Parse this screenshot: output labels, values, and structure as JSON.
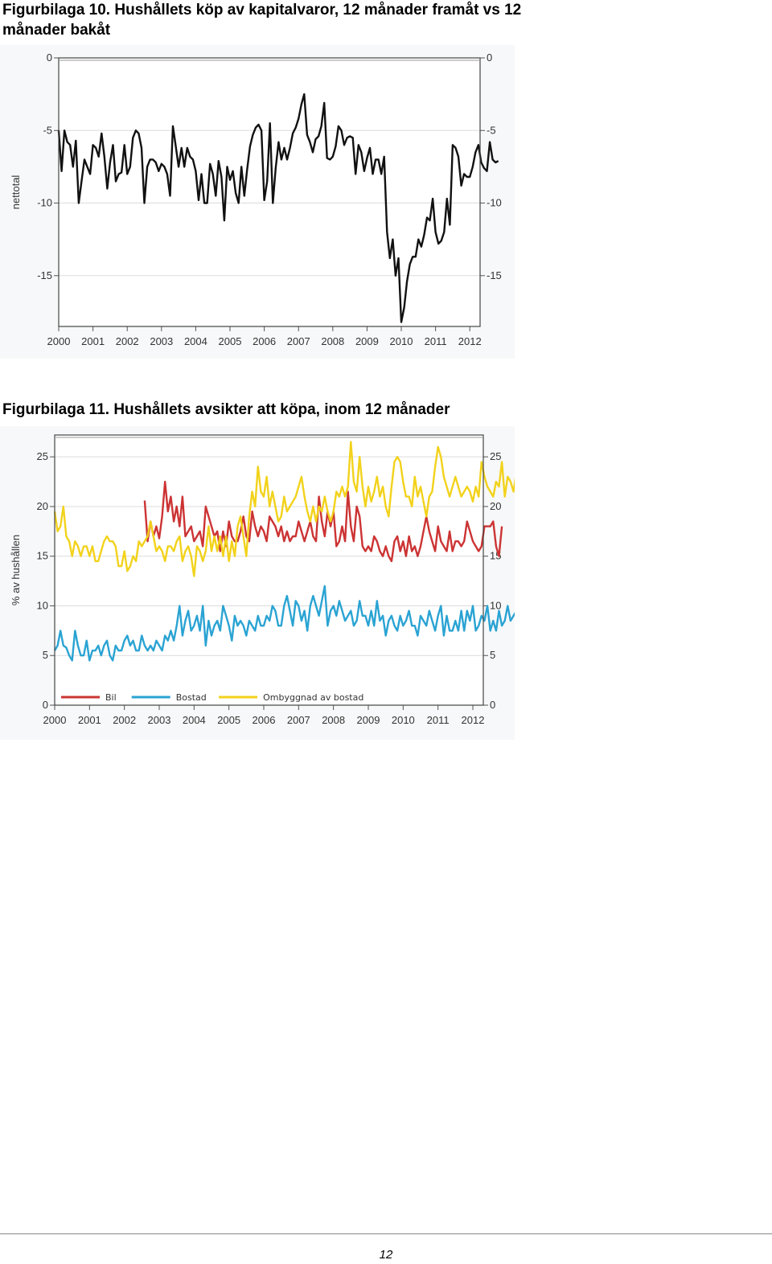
{
  "figures": [
    {
      "title": "Figurbilaga 10. Hushållets köp av kapitalvaror, 12 månader framåt vs 12 månader bakåt"
    },
    {
      "title": "Figurbilaga 11. Hushållets avsikter att köpa, inom 12 månader"
    }
  ],
  "page_number": "12",
  "chart_data": [
    {
      "type": "line",
      "title": "",
      "xlabel": "",
      "ylabel": "nettotal",
      "x_ticks": [
        "2000",
        "2001",
        "2002",
        "2003",
        "2004",
        "2005",
        "2006",
        "2007",
        "2008",
        "2009",
        "2010",
        "2011",
        "2012"
      ],
      "y_ticks": [
        0,
        -5,
        -10,
        -15
      ],
      "xlim": [
        2000,
        2012.3
      ],
      "ylim": [
        -18.5,
        0
      ],
      "grid": true,
      "x_start": 2000,
      "x_step_months": 1,
      "series": [
        {
          "color": "#111111",
          "values": [
            -5,
            -7.8,
            -5,
            -5.8,
            -6,
            -7.5,
            -5.7,
            -10,
            -8.5,
            -7,
            -7.5,
            -8,
            -6,
            -6.2,
            -6.8,
            -5.2,
            -6.8,
            -9,
            -7.2,
            -6,
            -8.5,
            -8,
            -7.9,
            -6,
            -8,
            -7.5,
            -5.5,
            -5,
            -5.2,
            -6.2,
            -10,
            -7.5,
            -7,
            -7,
            -7.2,
            -7.8,
            -7.3,
            -7.5,
            -8,
            -9.5,
            -4.7,
            -6.1,
            -7.5,
            -6.2,
            -7.5,
            -6.2,
            -6.8,
            -7,
            -7.8,
            -9.8,
            -8,
            -10,
            -10,
            -7.3,
            -8,
            -9.5,
            -7.1,
            -8.2,
            -11.2,
            -7.5,
            -8.4,
            -7.8,
            -9.3,
            -10,
            -7.5,
            -9.5,
            -7.7,
            -6.1,
            -5.3,
            -4.8,
            -4.6,
            -5,
            -9.8,
            -8.5,
            -4.5,
            -10,
            -7.6,
            -5.8,
            -7,
            -6.2,
            -7,
            -6.2,
            -5.2,
            -4.8,
            -4.2,
            -3.2,
            -2.5,
            -5.3,
            -5.8,
            -6.5,
            -5.6,
            -5.4,
            -4.7,
            -3.1,
            -6.9,
            -7,
            -6.8,
            -6.1,
            -4.7,
            -5,
            -6,
            -5.5,
            -5.4,
            -5.5,
            -8,
            -6,
            -6.5,
            -7.8,
            -6.9,
            -6.2,
            -8,
            -7,
            -7,
            -8,
            -6.8,
            -12,
            -13.8,
            -12.5,
            -15,
            -13.8,
            -18.2,
            -17.2,
            -15.4,
            -14.2,
            -13.7,
            -13.7,
            -12.5,
            -13,
            -12.2,
            -11,
            -11.2,
            -9.7,
            -12,
            -12.8,
            -12.6,
            -12,
            -9.7,
            -11.5,
            -6,
            -6.2,
            -6.8,
            -8.8,
            -8,
            -8.2,
            -8.2,
            -7.5,
            -6.5,
            -6,
            -7.2,
            -7.6,
            -7.8,
            -5.8,
            -7,
            -7.2,
            -7.1
          ]
        }
      ]
    },
    {
      "type": "line",
      "title": "",
      "xlabel": "",
      "ylabel": "% av hushållen",
      "x_ticks": [
        "2000",
        "2001",
        "2002",
        "2003",
        "2004",
        "2005",
        "2006",
        "2007",
        "2008",
        "2009",
        "2010",
        "2011",
        "2012"
      ],
      "y_ticks": [
        0,
        5,
        10,
        15,
        20,
        25
      ],
      "xlim": [
        2000,
        2012.3
      ],
      "ylim": [
        0,
        27.2
      ],
      "grid": true,
      "legend": "bottom-left",
      "x_start": 2000,
      "x_step_months": 1,
      "series": [
        {
          "name": "Bil",
          "color": "#cc3333",
          "start_month_index": 31,
          "values": [
            20.6,
            16.5,
            18.5,
            17,
            18,
            16.8,
            19,
            22.5,
            19.5,
            21,
            18.5,
            20,
            18,
            21,
            17,
            17.5,
            18,
            16.5,
            17,
            17.5,
            16,
            20,
            19,
            18,
            17,
            17.5,
            15.5,
            17.5,
            16,
            18.5,
            17,
            16.5,
            16.5,
            17.5,
            19,
            17,
            16.5,
            19.5,
            18,
            17,
            18,
            17.5,
            16.5,
            19,
            18.5,
            18,
            17,
            18,
            16.5,
            17.5,
            16.5,
            17,
            17,
            18.5,
            17.5,
            16.5,
            17.5,
            18.5,
            17,
            16.5,
            21,
            18.5,
            17,
            19.5,
            18,
            19.5,
            16,
            16.5,
            18,
            16.5,
            21.5,
            18,
            16.5,
            20,
            19,
            16,
            15.5,
            16,
            15.5,
            17,
            16.5,
            15.5,
            15,
            16,
            15,
            14.5,
            16.5,
            17,
            15.5,
            16.5,
            15,
            17,
            15.5,
            16,
            15,
            16,
            17.5,
            19,
            17.5,
            16.5,
            15.5,
            18,
            16.5,
            16,
            15.5,
            17.5,
            15.5,
            16.5,
            16.5,
            16,
            16.5,
            18.5,
            17.5,
            16.5,
            16,
            15.5,
            16,
            18,
            18,
            18,
            18.5,
            16,
            15,
            18
          ]
        },
        {
          "name": "Bostad",
          "color": "#2aa3d3",
          "start_month_index": 0,
          "values": [
            5.5,
            6,
            7.5,
            6,
            5.8,
            5,
            4.5,
            7.5,
            6,
            5,
            5,
            6.5,
            4.5,
            5.5,
            5.5,
            6,
            5,
            6,
            6.5,
            5,
            4.5,
            6,
            5.5,
            5.5,
            6.5,
            7,
            6,
            6.5,
            5.5,
            5.5,
            7,
            6,
            5.5,
            6,
            5.5,
            6.5,
            6,
            5.5,
            7,
            6.5,
            7.5,
            6.5,
            8,
            10,
            7,
            8.5,
            9.5,
            7.5,
            8,
            9,
            7.5,
            10,
            6,
            8.5,
            7,
            8,
            8.5,
            7.5,
            10,
            9,
            8,
            6.5,
            9,
            8,
            8.5,
            8,
            7,
            8.5,
            8,
            7.5,
            9,
            8,
            8,
            9,
            8.5,
            10,
            9.5,
            8,
            8,
            10,
            11,
            9.5,
            8,
            10.5,
            10,
            8.5,
            9.5,
            7.5,
            10,
            11,
            10,
            9,
            10.5,
            12,
            8,
            9.5,
            10,
            9,
            10.5,
            9.5,
            8.5,
            9,
            9.5,
            8,
            8.5,
            10.5,
            9,
            9,
            8,
            9.5,
            8,
            10.5,
            8.5,
            9,
            7,
            8.5,
            9,
            8,
            7.5,
            9,
            8,
            8.5,
            9.5,
            8,
            8,
            7,
            9,
            8.5,
            8,
            9.5,
            8.5,
            7.5,
            9,
            10,
            7,
            9,
            7.5,
            7.5,
            8.5,
            7.5,
            9.5,
            7.5,
            9.5,
            8.5,
            10,
            7.5,
            8,
            9,
            8.5,
            10,
            7.5,
            8.5,
            7.5,
            9.5,
            8,
            8.5,
            10,
            8.5,
            9,
            9.5
          ]
        },
        {
          "name": "Ombyggnad av bostad",
          "color": "#f2d21b",
          "start_month_index": 0,
          "values": [
            19.5,
            17.5,
            18,
            20,
            17,
            16.5,
            15,
            16.5,
            16,
            15,
            16,
            16,
            15,
            16,
            14.5,
            14.5,
            15.5,
            16.5,
            17,
            16.5,
            16.5,
            16,
            14,
            14,
            15.5,
            13.5,
            14,
            15,
            14.5,
            16.5,
            16,
            16.5,
            17,
            18.5,
            17,
            15.5,
            16,
            15.5,
            14.5,
            16,
            16,
            15.5,
            16.5,
            17,
            14.5,
            15.5,
            16,
            15,
            13,
            16,
            15.5,
            14.5,
            15.5,
            18,
            15.5,
            17,
            15.5,
            17,
            15,
            17,
            14.5,
            16.5,
            15,
            18,
            19,
            17,
            15,
            19,
            21.5,
            20,
            24,
            21.5,
            21,
            23,
            20,
            21.5,
            20,
            18.5,
            19,
            21,
            19.5,
            20,
            20.5,
            21,
            22,
            23,
            21,
            19.5,
            18.5,
            20,
            18.5,
            20,
            19.5,
            21,
            19.5,
            18.5,
            19.5,
            21.5,
            21,
            22,
            21,
            22,
            26.5,
            22.5,
            21.5,
            25,
            22,
            20,
            22,
            20.5,
            21.5,
            23,
            21,
            22,
            20,
            19,
            22,
            24.5,
            25,
            24.5,
            22.5,
            21,
            21,
            20,
            23,
            21,
            22,
            20.5,
            19,
            21,
            21.5,
            24,
            26,
            25,
            23,
            22,
            21,
            22,
            23,
            22,
            21,
            21.5,
            22,
            21.5,
            20.5,
            22,
            21,
            24.5,
            23,
            22,
            21.5,
            21,
            22.5,
            22,
            24.5,
            21,
            23,
            22.5,
            21.5,
            23.5,
            22,
            21,
            24.5
          ]
        }
      ]
    }
  ]
}
